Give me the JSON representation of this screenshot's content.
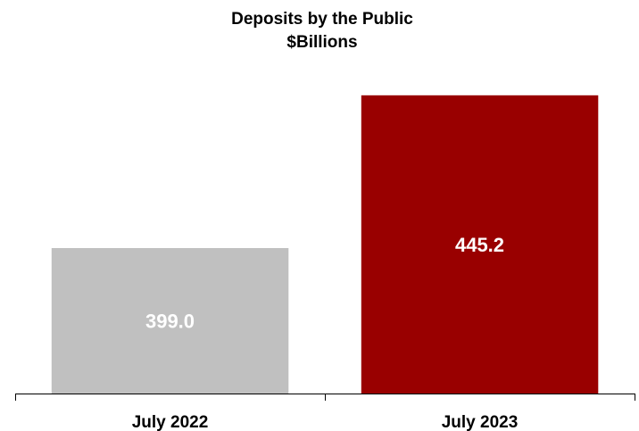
{
  "chart_data": {
    "type": "bar",
    "title": "Deposits by the Public",
    "subtitle": "$Billions",
    "categories": [
      "July 2022",
      "July 2023"
    ],
    "values": [
      399.0,
      445.2
    ],
    "value_labels": [
      "399.0",
      "445.2"
    ],
    "colors": [
      "#c0c0c0",
      "#990000"
    ],
    "ylim": [
      355,
      450
    ],
    "grid": false,
    "legend": "none"
  }
}
